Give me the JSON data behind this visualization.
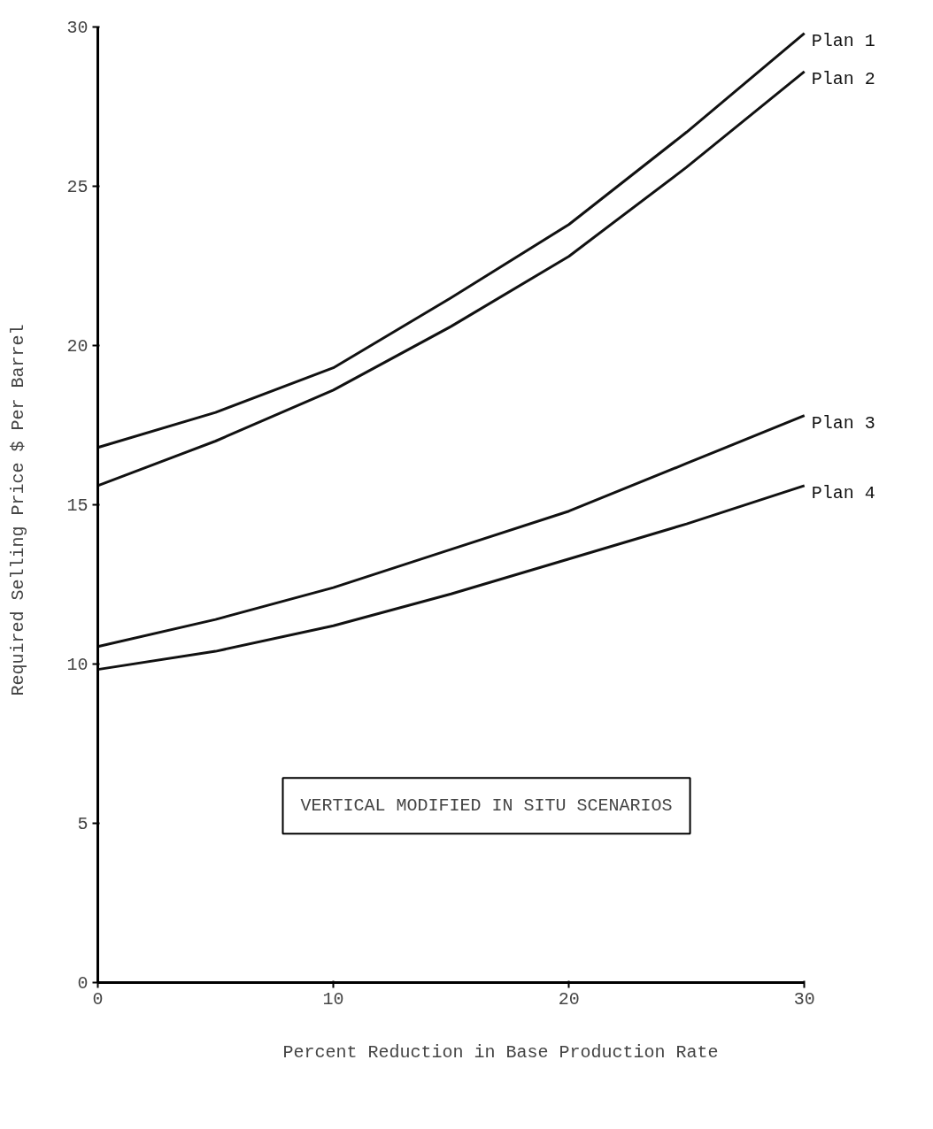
{
  "chart_data": {
    "type": "line",
    "xlabel": "Percent Reduction in Base Production Rate",
    "ylabel": "Required Selling Price  $ Per Barrel",
    "x": [
      0,
      5,
      10,
      15,
      20,
      25,
      30
    ],
    "series": [
      {
        "name": "Plan 1",
        "color": "#111111",
        "values": [
          16.8,
          17.9,
          19.3,
          21.5,
          23.8,
          26.7,
          29.8
        ]
      },
      {
        "name": "Plan 2",
        "color": "#111111",
        "values": [
          15.6,
          17.0,
          18.6,
          20.6,
          22.8,
          25.6,
          28.6
        ]
      },
      {
        "name": "Plan 3",
        "color": "#111111",
        "values": [
          10.55,
          11.4,
          12.4,
          13.6,
          14.8,
          16.3,
          17.8
        ]
      },
      {
        "name": "Plan 4",
        "color": "#111111",
        "values": [
          9.83,
          10.4,
          11.2,
          12.2,
          13.3,
          14.4,
          15.6
        ]
      }
    ],
    "annotations": [
      "VERTICAL MODIFIED IN SITU SCENARIOS"
    ],
    "xlim": [
      0,
      30
    ],
    "ylim": [
      0,
      30
    ],
    "xticks": [
      0,
      10,
      20,
      30
    ],
    "yticks": [
      0,
      5,
      10,
      15,
      20,
      25,
      30
    ],
    "grid": false,
    "marker": "none",
    "line_style": "solid"
  }
}
